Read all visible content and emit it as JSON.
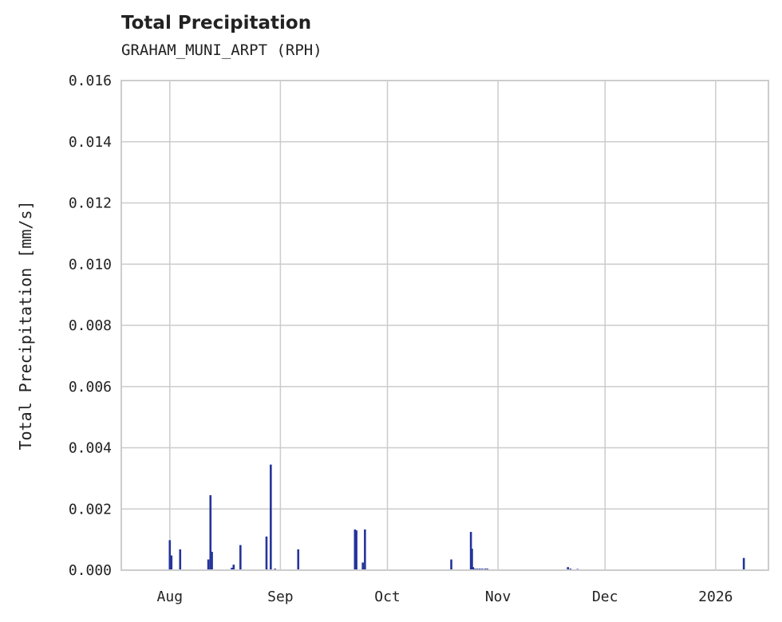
{
  "chart_data": {
    "type": "bar",
    "title": "Total Precipitation",
    "subtitle": "GRAHAM_MUNI_ARPT (RPH)",
    "xlabel": "",
    "ylabel": "Total Precipitation [mm/s]",
    "x_units": "days since 2025-08-01",
    "xlim": [
      -13.6,
      167.8
    ],
    "ylim": [
      0,
      0.016
    ],
    "grid": true,
    "color": "#25349a",
    "yticks": [
      {
        "value": 0,
        "label": "0.000"
      },
      {
        "value": 0.002,
        "label": "0.002"
      },
      {
        "value": 0.004,
        "label": "0.004"
      },
      {
        "value": 0.006,
        "label": "0.006"
      },
      {
        "value": 0.008,
        "label": "0.008"
      },
      {
        "value": 0.01,
        "label": "0.010"
      },
      {
        "value": 0.012,
        "label": "0.012"
      },
      {
        "value": 0.014,
        "label": "0.014"
      },
      {
        "value": 0.016,
        "label": "0.016"
      }
    ],
    "xticks": [
      {
        "value": 0,
        "label": "Aug"
      },
      {
        "value": 31,
        "label": "Sep"
      },
      {
        "value": 61,
        "label": "Oct"
      },
      {
        "value": 92,
        "label": "Nov"
      },
      {
        "value": 122,
        "label": "Dec"
      },
      {
        "value": 153,
        "label": "2026"
      }
    ],
    "points": [
      [
        0.0,
        0.00098
      ],
      [
        0.45,
        0.00048
      ],
      [
        2.9,
        0.00068
      ],
      [
        10.8,
        0.00035
      ],
      [
        11.4,
        0.00245
      ],
      [
        11.8,
        0.0006
      ],
      [
        17.4,
        8e-05
      ],
      [
        17.9,
        0.00018
      ],
      [
        19.8,
        0.00082
      ],
      [
        27.1,
        0.0011
      ],
      [
        28.3,
        0.00345
      ],
      [
        29.5,
        5e-05
      ],
      [
        36.0,
        0.00068
      ],
      [
        51.9,
        0.00133
      ],
      [
        52.3,
        0.0013
      ],
      [
        54.1,
        0.00025
      ],
      [
        54.7,
        0.00133
      ],
      [
        78.9,
        0.00035
      ],
      [
        84.4,
        0.00125
      ],
      [
        84.7,
        0.0007
      ],
      [
        85.0,
        0.0001
      ],
      [
        85.5,
        5e-05
      ],
      [
        86.2,
        5e-05
      ],
      [
        86.9,
        5e-05
      ],
      [
        87.6,
        5e-05
      ],
      [
        88.4,
        5e-05
      ],
      [
        89.0,
        5e-05
      ],
      [
        111.6,
        0.0001
      ],
      [
        112.3,
        5e-05
      ],
      [
        114.3,
        4e-05
      ],
      [
        160.9,
        0.0004
      ]
    ]
  }
}
